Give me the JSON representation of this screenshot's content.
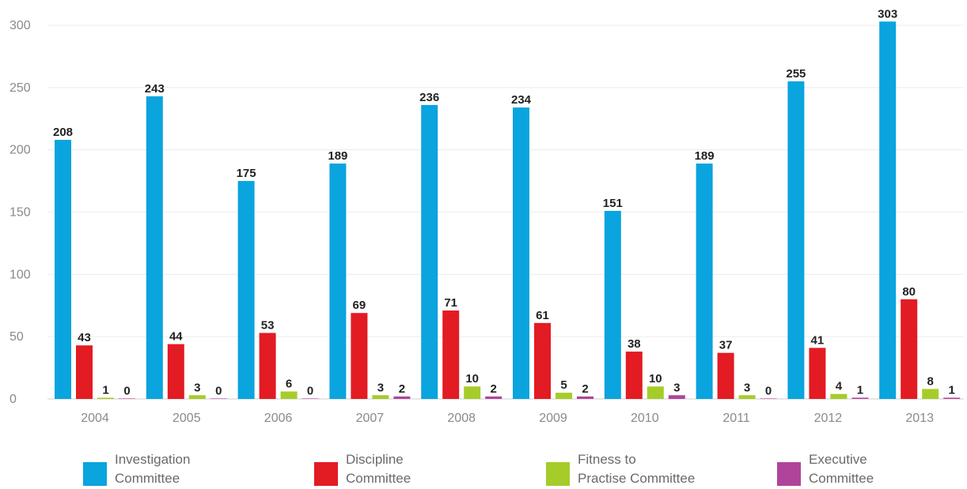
{
  "chart_data": {
    "type": "bar",
    "categories": [
      "2004",
      "2005",
      "2006",
      "2007",
      "2008",
      "2009",
      "2010",
      "2011",
      "2012",
      "2013"
    ],
    "series": [
      {
        "name": "Investigation\nCommittee",
        "color": "#0aa4de",
        "values": [
          208,
          243,
          175,
          189,
          236,
          234,
          151,
          189,
          255,
          303
        ]
      },
      {
        "name": "Discipline\nCommittee",
        "color": "#e31b23",
        "values": [
          43,
          44,
          53,
          69,
          71,
          61,
          38,
          37,
          41,
          80
        ]
      },
      {
        "name": "Fitness to\nPractise Committee",
        "color": "#a6cc2a",
        "values": [
          1,
          3,
          6,
          3,
          10,
          5,
          10,
          3,
          4,
          8
        ]
      },
      {
        "name": "Executive\nCommittee",
        "color": "#b0449a",
        "values": [
          0,
          0,
          0,
          2,
          2,
          2,
          3,
          0,
          1,
          1
        ]
      }
    ],
    "y_ticks": [
      "0",
      "50",
      "100",
      "150",
      "200",
      "250",
      "300"
    ],
    "ylim": [
      0,
      300
    ],
    "grid": true,
    "legend_position": "bottom",
    "title": "",
    "xlabel": "",
    "ylabel": ""
  }
}
